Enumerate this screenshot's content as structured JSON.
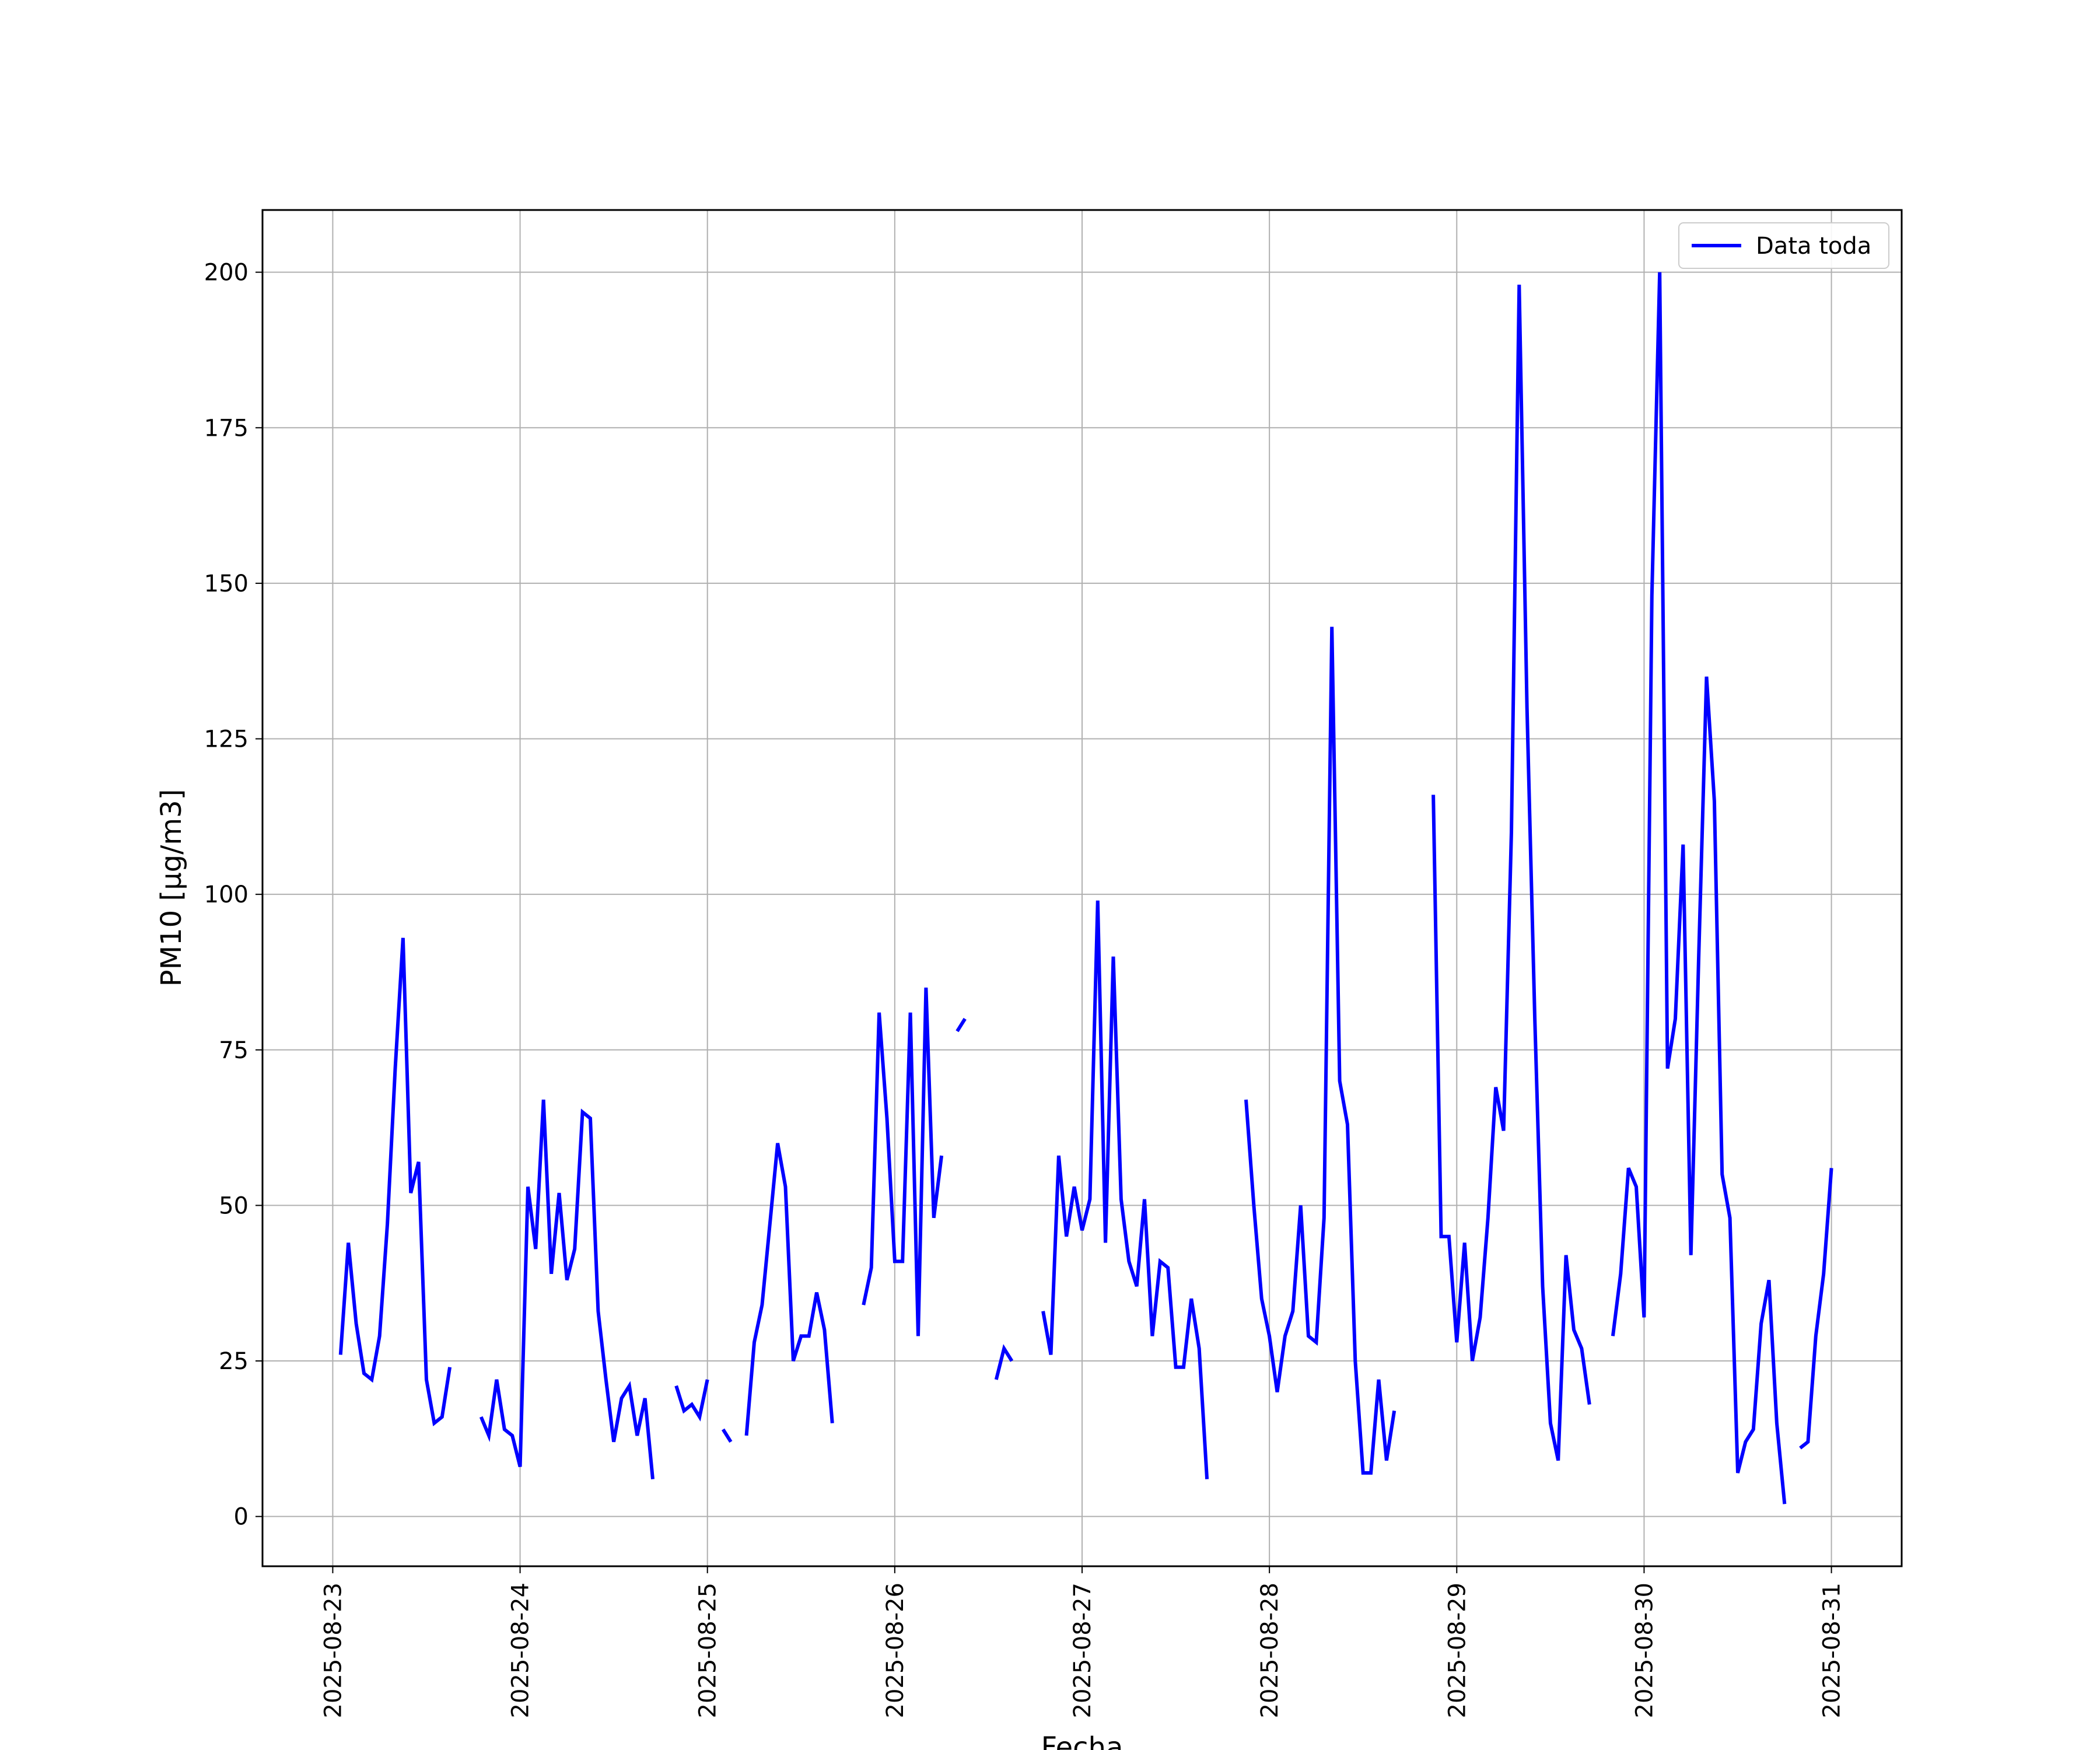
{
  "chart_data": {
    "type": "line",
    "title": "",
    "xlabel": "Fecha",
    "ylabel": "PM10 [μg/m3]",
    "ylim": [
      -8,
      210
    ],
    "yticks": [
      0,
      25,
      50,
      75,
      100,
      125,
      150,
      175,
      200
    ],
    "xlim": [
      "2025-08-22T15:00",
      "2025-08-31T09:00"
    ],
    "xticks": [
      "2025-08-23",
      "2025-08-24",
      "2025-08-25",
      "2025-08-26",
      "2025-08-27",
      "2025-08-28",
      "2025-08-29",
      "2025-08-30",
      "2025-08-31"
    ],
    "grid": true,
    "legend_position": "upper-right",
    "series": [
      {
        "name": "Data toda",
        "color": "#0000ff",
        "segments": [
          [
            [
              "2025-08-23T01:00",
              26
            ],
            [
              "2025-08-23T02:00",
              44
            ],
            [
              "2025-08-23T03:00",
              31
            ],
            [
              "2025-08-23T04:00",
              23
            ],
            [
              "2025-08-23T05:00",
              22
            ],
            [
              "2025-08-23T06:00",
              29
            ],
            [
              "2025-08-23T07:00",
              47
            ],
            [
              "2025-08-23T08:00",
              72
            ],
            [
              "2025-08-23T09:00",
              93
            ],
            [
              "2025-08-23T10:00",
              52
            ],
            [
              "2025-08-23T11:00",
              57
            ],
            [
              "2025-08-23T12:00",
              22
            ],
            [
              "2025-08-23T13:00",
              15
            ],
            [
              "2025-08-23T14:00",
              16
            ],
            [
              "2025-08-23T15:00",
              24
            ]
          ],
          [
            [
              "2025-08-23T19:00",
              16
            ],
            [
              "2025-08-23T20:00",
              13
            ],
            [
              "2025-08-23T21:00",
              22
            ],
            [
              "2025-08-23T22:00",
              14
            ],
            [
              "2025-08-23T23:00",
              13
            ],
            [
              "2025-08-24T00:00",
              8
            ],
            [
              "2025-08-24T01:00",
              53
            ],
            [
              "2025-08-24T02:00",
              43
            ],
            [
              "2025-08-24T03:00",
              67
            ],
            [
              "2025-08-24T04:00",
              39
            ],
            [
              "2025-08-24T05:00",
              52
            ],
            [
              "2025-08-24T06:00",
              38
            ],
            [
              "2025-08-24T07:00",
              43
            ],
            [
              "2025-08-24T08:00",
              65
            ],
            [
              "2025-08-24T09:00",
              64
            ],
            [
              "2025-08-24T10:00",
              33
            ],
            [
              "2025-08-24T11:00",
              22
            ],
            [
              "2025-08-24T12:00",
              12
            ],
            [
              "2025-08-24T13:00",
              19
            ],
            [
              "2025-08-24T14:00",
              21
            ],
            [
              "2025-08-24T15:00",
              13
            ],
            [
              "2025-08-24T16:00",
              19
            ],
            [
              "2025-08-24T17:00",
              6
            ]
          ],
          [
            [
              "2025-08-24T20:00",
              21
            ],
            [
              "2025-08-24T21:00",
              17
            ],
            [
              "2025-08-24T22:00",
              18
            ],
            [
              "2025-08-24T23:00",
              16
            ],
            [
              "2025-08-25T00:00",
              22
            ]
          ],
          [
            [
              "2025-08-25T02:00",
              14
            ],
            [
              "2025-08-25T03:00",
              12
            ]
          ],
          [
            [
              "2025-08-25T05:00",
              13
            ],
            [
              "2025-08-25T06:00",
              28
            ],
            [
              "2025-08-25T07:00",
              34
            ],
            [
              "2025-08-25T08:00",
              47
            ],
            [
              "2025-08-25T09:00",
              60
            ],
            [
              "2025-08-25T10:00",
              53
            ],
            [
              "2025-08-25T11:00",
              25
            ],
            [
              "2025-08-25T12:00",
              29
            ],
            [
              "2025-08-25T13:00",
              29
            ],
            [
              "2025-08-25T14:00",
              36
            ],
            [
              "2025-08-25T15:00",
              30
            ],
            [
              "2025-08-25T16:00",
              15
            ]
          ],
          [
            [
              "2025-08-25T20:00",
              34
            ],
            [
              "2025-08-25T21:00",
              40
            ],
            [
              "2025-08-25T22:00",
              81
            ],
            [
              "2025-08-25T23:00",
              64
            ],
            [
              "2025-08-26T00:00",
              41
            ],
            [
              "2025-08-26T01:00",
              41
            ],
            [
              "2025-08-26T02:00",
              81
            ],
            [
              "2025-08-26T03:00",
              29
            ],
            [
              "2025-08-26T04:00",
              85
            ],
            [
              "2025-08-26T05:00",
              48
            ],
            [
              "2025-08-26T06:00",
              58
            ]
          ],
          [
            [
              "2025-08-26T08:00",
              78
            ],
            [
              "2025-08-26T09:00",
              80
            ]
          ],
          [
            [
              "2025-08-26T13:00",
              22
            ],
            [
              "2025-08-26T14:00",
              27
            ],
            [
              "2025-08-26T15:00",
              25
            ]
          ],
          [
            [
              "2025-08-26T19:00",
              33
            ],
            [
              "2025-08-26T20:00",
              26
            ],
            [
              "2025-08-26T21:00",
              58
            ],
            [
              "2025-08-26T22:00",
              45
            ],
            [
              "2025-08-26T23:00",
              53
            ],
            [
              "2025-08-27T00:00",
              46
            ],
            [
              "2025-08-27T01:00",
              51
            ],
            [
              "2025-08-27T02:00",
              99
            ],
            [
              "2025-08-27T03:00",
              44
            ],
            [
              "2025-08-27T04:00",
              90
            ],
            [
              "2025-08-27T05:00",
              51
            ],
            [
              "2025-08-27T06:00",
              41
            ],
            [
              "2025-08-27T07:00",
              37
            ],
            [
              "2025-08-27T08:00",
              51
            ],
            [
              "2025-08-27T09:00",
              29
            ],
            [
              "2025-08-27T10:00",
              41
            ],
            [
              "2025-08-27T11:00",
              40
            ],
            [
              "2025-08-27T12:00",
              24
            ],
            [
              "2025-08-27T13:00",
              24
            ],
            [
              "2025-08-27T14:00",
              35
            ],
            [
              "2025-08-27T15:00",
              27
            ],
            [
              "2025-08-27T16:00",
              6
            ]
          ],
          [
            [
              "2025-08-27T21:00",
              67
            ],
            [
              "2025-08-27T22:00",
              50
            ],
            [
              "2025-08-27T23:00",
              35
            ],
            [
              "2025-08-28T00:00",
              29
            ],
            [
              "2025-08-28T01:00",
              20
            ],
            [
              "2025-08-28T02:00",
              29
            ],
            [
              "2025-08-28T03:00",
              33
            ],
            [
              "2025-08-28T04:00",
              50
            ],
            [
              "2025-08-28T05:00",
              29
            ],
            [
              "2025-08-28T06:00",
              28
            ],
            [
              "2025-08-28T07:00",
              48
            ],
            [
              "2025-08-28T08:00",
              143
            ],
            [
              "2025-08-28T09:00",
              70
            ],
            [
              "2025-08-28T10:00",
              63
            ],
            [
              "2025-08-28T11:00",
              25
            ],
            [
              "2025-08-28T12:00",
              7
            ],
            [
              "2025-08-28T13:00",
              7
            ],
            [
              "2025-08-28T14:00",
              22
            ],
            [
              "2025-08-28T15:00",
              9
            ],
            [
              "2025-08-28T16:00",
              17
            ]
          ],
          [
            [
              "2025-08-28T21:00",
              116
            ],
            [
              "2025-08-28T22:00",
              45
            ],
            [
              "2025-08-28T23:00",
              45
            ],
            [
              "2025-08-29T00:00",
              28
            ],
            [
              "2025-08-29T01:00",
              44
            ],
            [
              "2025-08-29T02:00",
              25
            ],
            [
              "2025-08-29T03:00",
              32
            ],
            [
              "2025-08-29T04:00",
              48
            ],
            [
              "2025-08-29T05:00",
              69
            ],
            [
              "2025-08-29T06:00",
              62
            ],
            [
              "2025-08-29T07:00",
              110
            ],
            [
              "2025-08-29T08:00",
              198
            ],
            [
              "2025-08-29T09:00",
              130
            ],
            [
              "2025-08-29T10:00",
              80
            ],
            [
              "2025-08-29T11:00",
              37
            ],
            [
              "2025-08-29T12:00",
              15
            ],
            [
              "2025-08-29T13:00",
              9
            ],
            [
              "2025-08-29T14:00",
              42
            ],
            [
              "2025-08-29T15:00",
              30
            ],
            [
              "2025-08-29T16:00",
              27
            ],
            [
              "2025-08-29T17:00",
              18
            ]
          ],
          [
            [
              "2025-08-29T20:00",
              29
            ],
            [
              "2025-08-29T21:00",
              39
            ],
            [
              "2025-08-29T22:00",
              56
            ],
            [
              "2025-08-29T23:00",
              53
            ],
            [
              "2025-08-30T00:00",
              32
            ],
            [
              "2025-08-30T01:00",
              148
            ],
            [
              "2025-08-30T02:00",
              200
            ],
            [
              "2025-08-30T03:00",
              72
            ],
            [
              "2025-08-30T04:00",
              80
            ],
            [
              "2025-08-30T05:00",
              108
            ],
            [
              "2025-08-30T06:00",
              42
            ],
            [
              "2025-08-30T07:00",
              90
            ],
            [
              "2025-08-30T08:00",
              135
            ],
            [
              "2025-08-30T09:00",
              115
            ],
            [
              "2025-08-30T10:00",
              55
            ],
            [
              "2025-08-30T11:00",
              48
            ],
            [
              "2025-08-30T12:00",
              7
            ],
            [
              "2025-08-30T13:00",
              12
            ],
            [
              "2025-08-30T14:00",
              14
            ],
            [
              "2025-08-30T15:00",
              31
            ],
            [
              "2025-08-30T16:00",
              38
            ],
            [
              "2025-08-30T17:00",
              15
            ],
            [
              "2025-08-30T18:00",
              2
            ]
          ],
          [
            [
              "2025-08-30T20:00",
              11
            ],
            [
              "2025-08-30T21:00",
              12
            ],
            [
              "2025-08-30T22:00",
              29
            ],
            [
              "2025-08-30T23:00",
              39
            ],
            [
              "2025-08-31T00:00",
              56
            ]
          ]
        ]
      }
    ]
  }
}
